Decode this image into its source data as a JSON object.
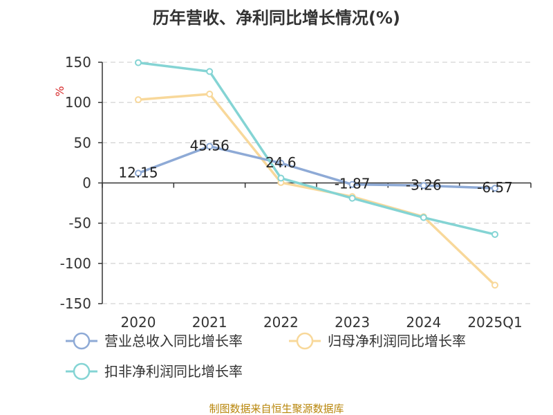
{
  "chart_data": {
    "type": "line",
    "title": "历年营收、净利同比增长情况(%)",
    "ylabel": "%",
    "categories": [
      "2020",
      "2021",
      "2022",
      "2023",
      "2024",
      "2025Q1"
    ],
    "ylim": [
      -150,
      150
    ],
    "yticks": [
      150,
      100,
      50,
      0,
      -50,
      -100,
      -150
    ],
    "grid": true,
    "legend_position": "bottom",
    "series": [
      {
        "name": "营业总收入同比增长率",
        "color": "#8eaad6",
        "values": [
          12.15,
          45.56,
          24.6,
          -1.87,
          -3.26,
          -6.57
        ],
        "labels": [
          "12.15",
          "45.56",
          "24.6",
          "-1.87",
          "-3.26",
          "-6.57"
        ]
      },
      {
        "name": "归母净利润同比增长率",
        "color": "#f8d89a",
        "values": [
          103.5,
          110.5,
          0.5,
          -17,
          -42,
          -127
        ]
      },
      {
        "name": "扣非净利润同比增长率",
        "color": "#84d4d4",
        "values": [
          149.5,
          138.5,
          6,
          -19,
          -43,
          -64
        ]
      }
    ],
    "source": "制图数据来自恒生聚源数据库"
  }
}
